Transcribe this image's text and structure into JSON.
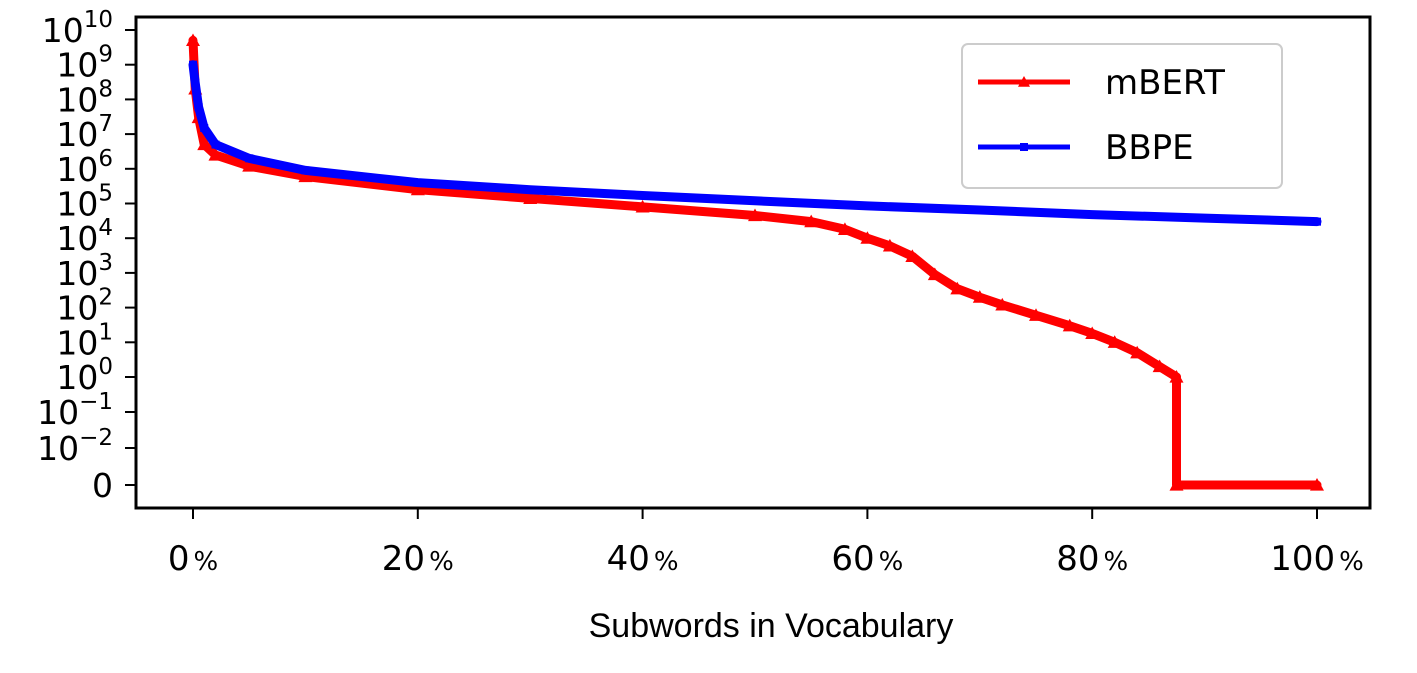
{
  "chart_data": {
    "type": "line",
    "title": "",
    "xlabel": "Subwords in Vocabulary",
    "ylabel": "",
    "x_unit": "%",
    "xlim": [
      0,
      100
    ],
    "y_scale": "symlog",
    "ylim": [
      0,
      10000000000
    ],
    "x_ticks": [
      0,
      20,
      40,
      60,
      80,
      100
    ],
    "y_ticks": [
      {
        "value": 0,
        "base": "0",
        "exp": ""
      },
      {
        "value": 0.01,
        "base": "10",
        "exp": "−2"
      },
      {
        "value": 0.1,
        "base": "10",
        "exp": "−1"
      },
      {
        "value": 1,
        "base": "10",
        "exp": "0"
      },
      {
        "value": 10,
        "base": "10",
        "exp": "1"
      },
      {
        "value": 100,
        "base": "10",
        "exp": "2"
      },
      {
        "value": 1000,
        "base": "10",
        "exp": "3"
      },
      {
        "value": 10000,
        "base": "10",
        "exp": "4"
      },
      {
        "value": 100000,
        "base": "10",
        "exp": "5"
      },
      {
        "value": 1000000,
        "base": "10",
        "exp": "6"
      },
      {
        "value": 10000000,
        "base": "10",
        "exp": "7"
      },
      {
        "value": 100000000,
        "base": "10",
        "exp": "8"
      },
      {
        "value": 1000000000,
        "base": "10",
        "exp": "9"
      },
      {
        "value": 10000000000,
        "base": "10",
        "exp": "10"
      }
    ],
    "grid": false,
    "legend_position": "top-right",
    "series": [
      {
        "name": "mBERT",
        "color": "#ff0000",
        "marker": "triangle",
        "points": [
          [
            0,
            5000000000
          ],
          [
            0.2,
            200000000
          ],
          [
            0.5,
            30000000
          ],
          [
            1,
            5000000
          ],
          [
            2,
            2500000
          ],
          [
            5,
            1200000
          ],
          [
            10,
            600000
          ],
          [
            20,
            250000
          ],
          [
            30,
            140000
          ],
          [
            40,
            80000
          ],
          [
            50,
            45000
          ],
          [
            55,
            30000
          ],
          [
            58,
            18000
          ],
          [
            60,
            10000
          ],
          [
            62,
            6000
          ],
          [
            64,
            3000
          ],
          [
            66,
            900
          ],
          [
            68,
            350
          ],
          [
            70,
            200
          ],
          [
            72,
            120
          ],
          [
            75,
            60
          ],
          [
            78,
            30
          ],
          [
            80,
            18
          ],
          [
            82,
            10
          ],
          [
            84,
            5
          ],
          [
            86,
            2
          ],
          [
            87.5,
            1
          ],
          [
            87.5,
            0
          ],
          [
            100,
            0
          ]
        ]
      },
      {
        "name": "BBPE",
        "color": "#0000ff",
        "marker": "square",
        "points": [
          [
            0,
            1000000000
          ],
          [
            0.2,
            300000000
          ],
          [
            0.5,
            60000000
          ],
          [
            1,
            15000000
          ],
          [
            2,
            5000000
          ],
          [
            5,
            2000000
          ],
          [
            10,
            900000
          ],
          [
            20,
            400000
          ],
          [
            30,
            250000
          ],
          [
            40,
            170000
          ],
          [
            50,
            120000
          ],
          [
            60,
            85000
          ],
          [
            70,
            65000
          ],
          [
            80,
            48000
          ],
          [
            90,
            38000
          ],
          [
            100,
            30000
          ]
        ]
      }
    ]
  }
}
